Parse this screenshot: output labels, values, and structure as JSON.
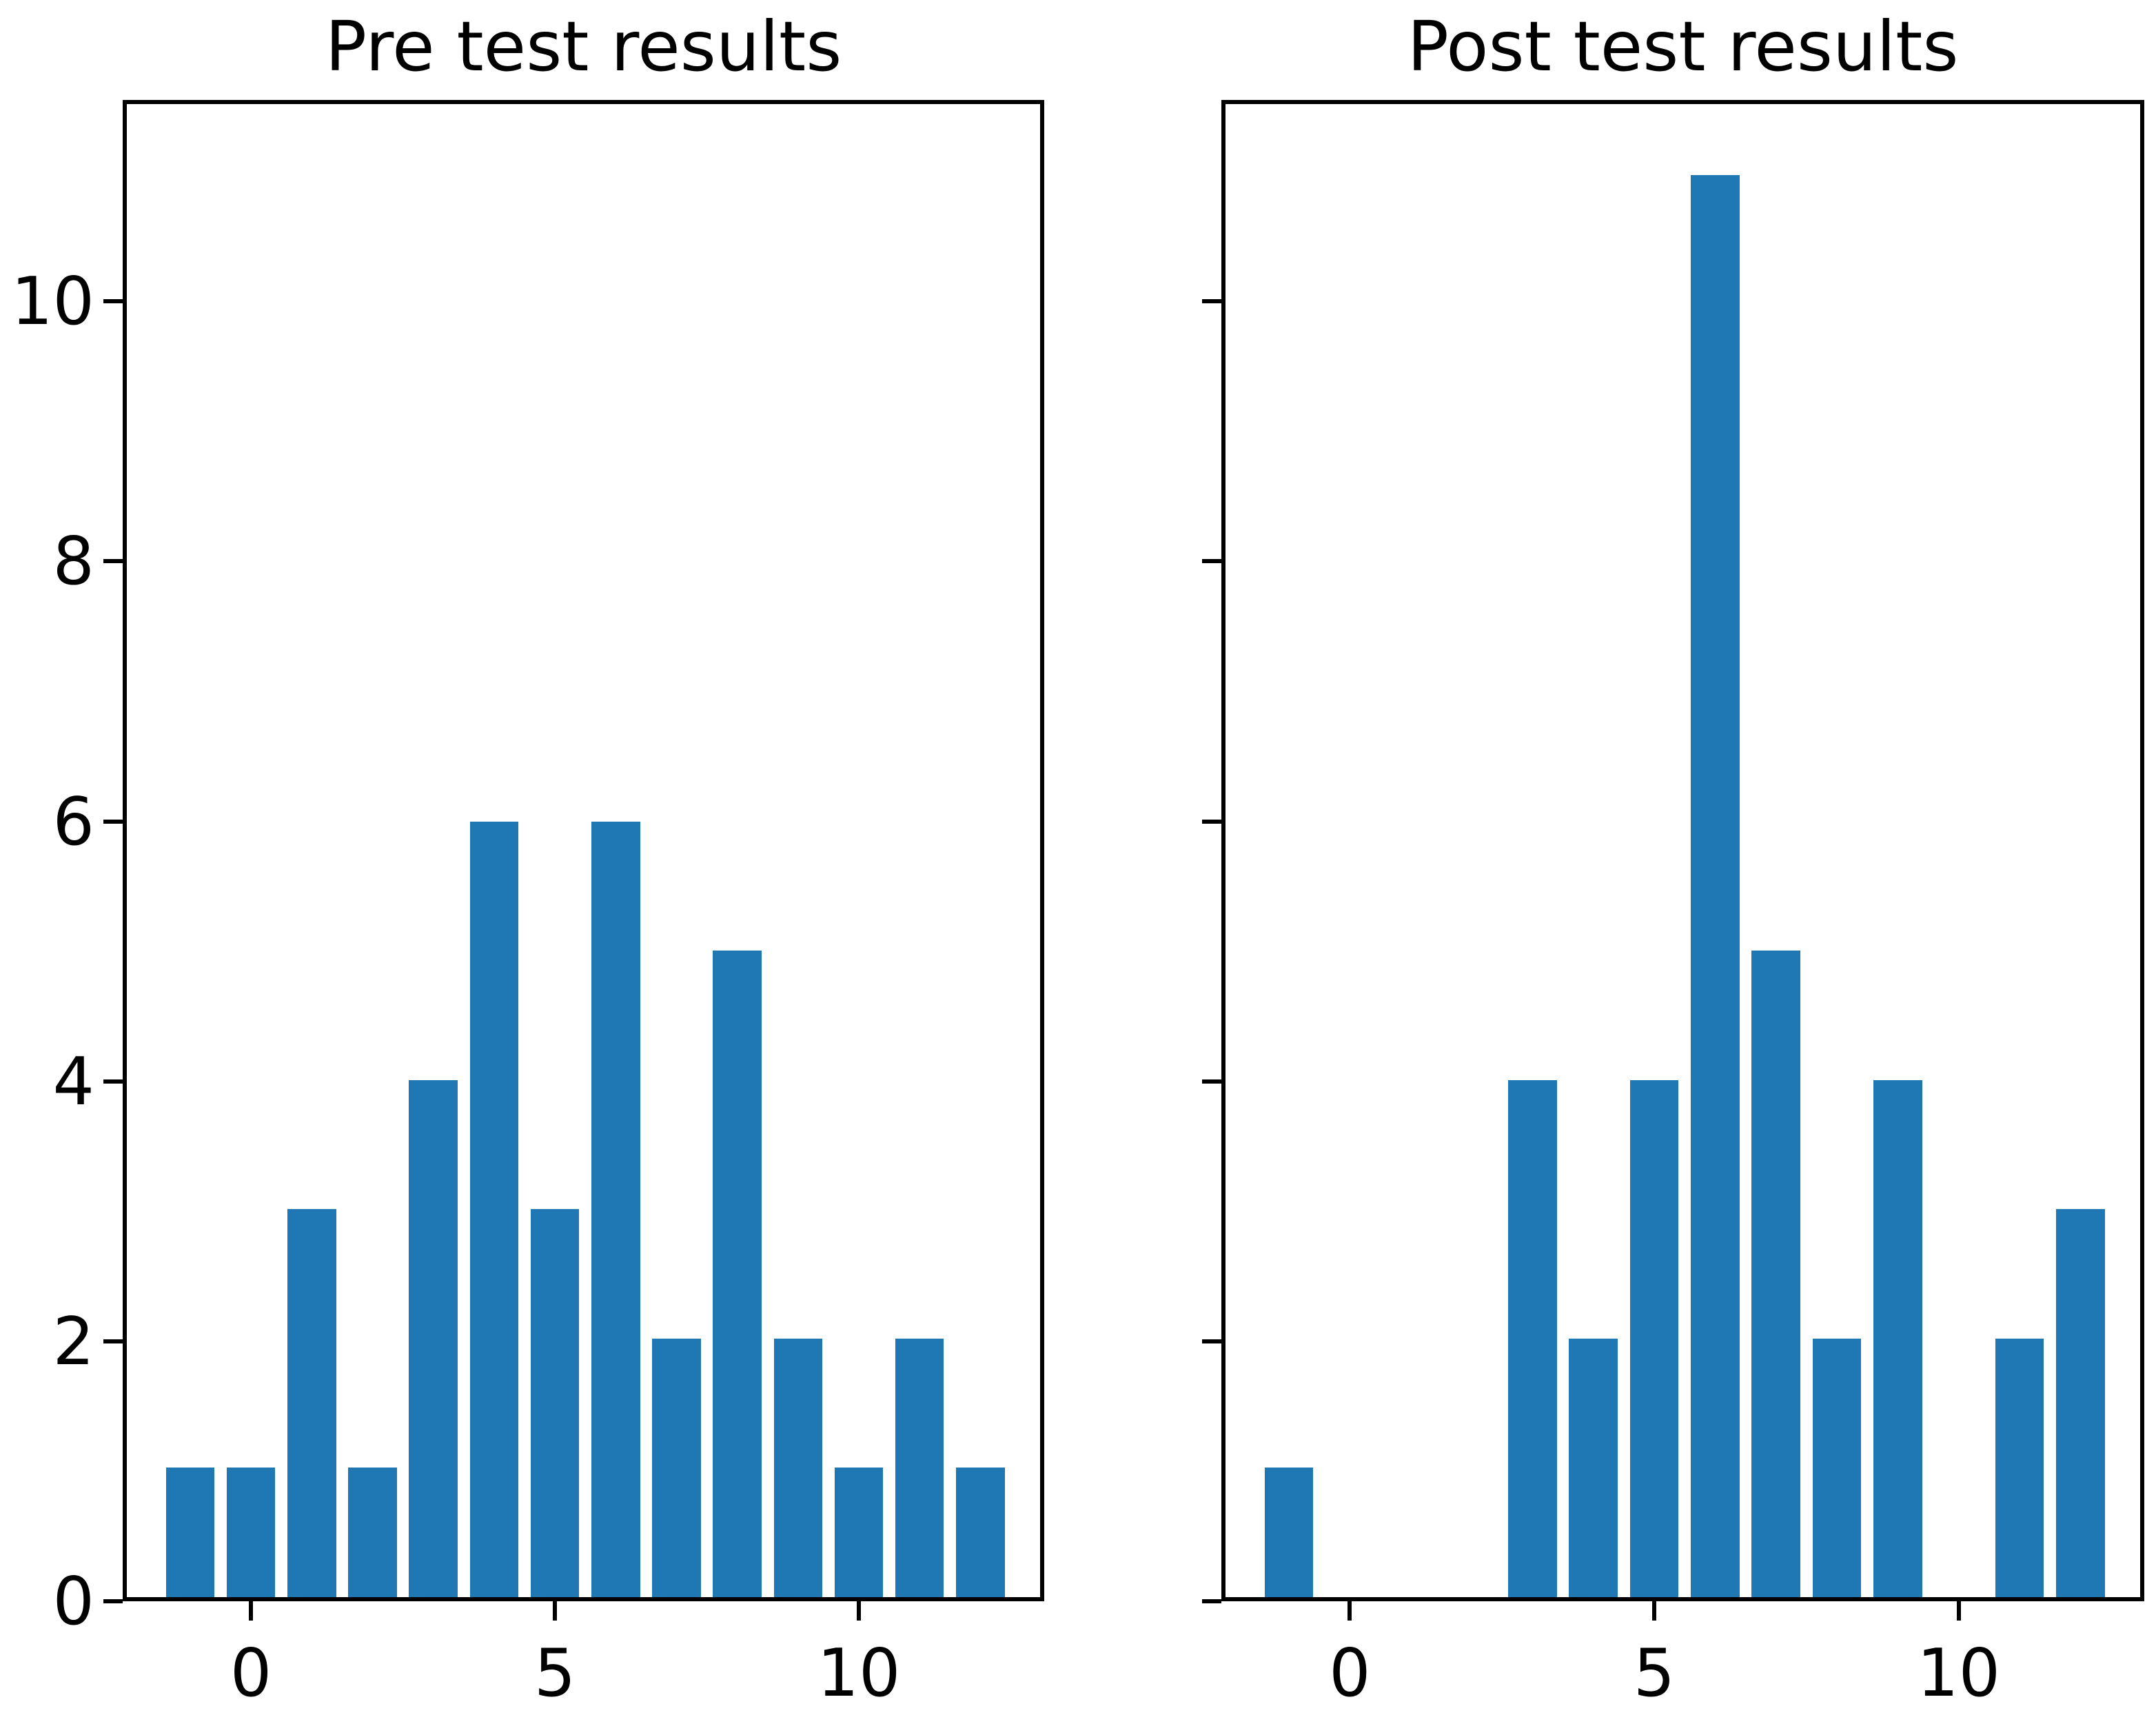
{
  "figure": {
    "background_color": "#ffffff",
    "text_color": "#000000"
  },
  "chart_data": [
    {
      "type": "bar",
      "title": "Pre test results",
      "x": [
        -1,
        0,
        1,
        2,
        3,
        4,
        5,
        6,
        7,
        8,
        9,
        10,
        11,
        12
      ],
      "values": [
        1,
        1,
        3,
        1,
        4,
        6,
        3,
        6,
        2,
        5,
        2,
        1,
        2,
        1
      ],
      "bar_color": "#1f77b4",
      "bar_width": 0.8,
      "xlim": [
        -2.11,
        13.05
      ],
      "ylim": [
        0,
        11.55
      ],
      "xticks": [
        0,
        5,
        10
      ],
      "yticks": [
        0,
        2,
        4,
        6,
        8,
        10
      ],
      "show_y_tick_labels": true,
      "grid": false
    },
    {
      "type": "bar",
      "title": "Post test results",
      "x": [
        -1,
        0,
        1,
        2,
        3,
        4,
        5,
        6,
        7,
        8,
        9,
        10,
        11,
        12
      ],
      "values": [
        1,
        0,
        0,
        0,
        4,
        2,
        4,
        11,
        5,
        2,
        4,
        0,
        2,
        3
      ],
      "bar_color": "#1f77b4",
      "bar_width": 0.8,
      "xlim": [
        -2.11,
        13.05
      ],
      "ylim": [
        0,
        11.55
      ],
      "xticks": [
        0,
        5,
        10
      ],
      "yticks": [
        0,
        2,
        4,
        6,
        8,
        10
      ],
      "show_y_tick_labels": false,
      "grid": false
    }
  ]
}
